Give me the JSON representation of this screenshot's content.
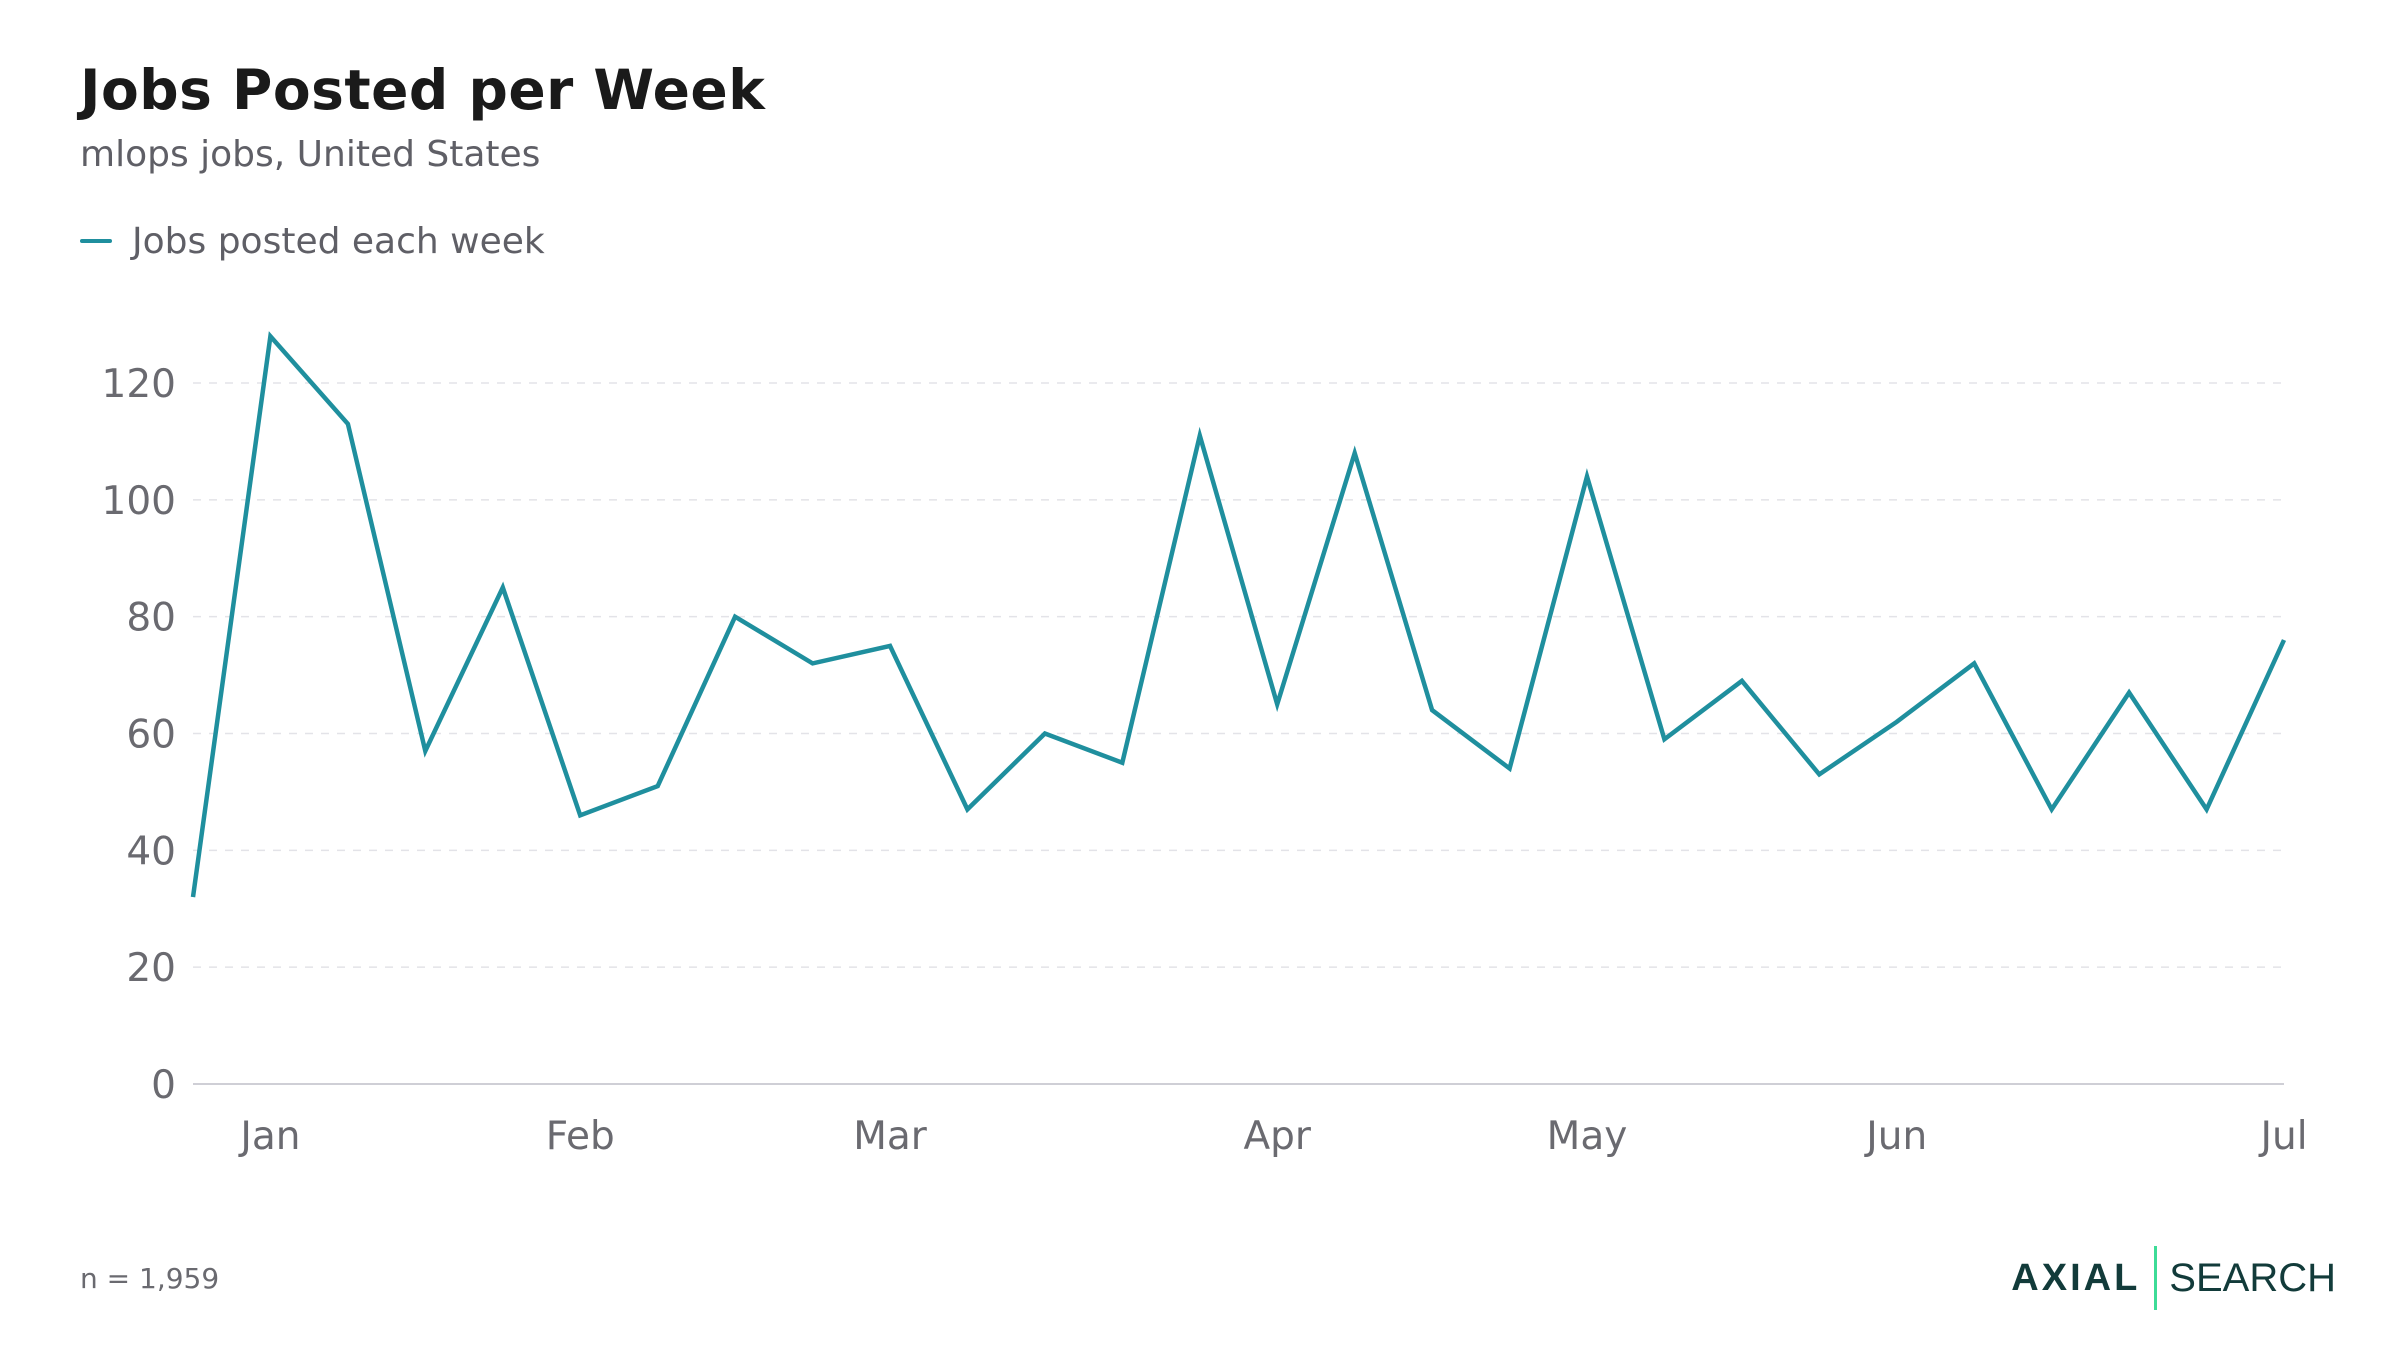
{
  "header": {
    "title": "Jobs Posted per Week",
    "subtitle": "mlops jobs, United States"
  },
  "footer": {
    "note": "n = 1,959",
    "brand_name": "AXIAL",
    "brand_product": "SEARCH"
  },
  "colors": {
    "series": "#1f8f9e",
    "brand_dark": "#123b3a",
    "brand_accent": "#3ddc97",
    "axis_text": "#6a6a70",
    "grid": "#e3e3e8"
  },
  "chart_data": {
    "type": "line",
    "xlabel": "",
    "ylabel": "",
    "ylim": [
      0,
      130
    ],
    "yticks": [
      "0",
      "20",
      "40",
      "60",
      "80",
      "100",
      "120"
    ],
    "grid": true,
    "legend_position": "top-left",
    "x_tick_labels": [
      {
        "label": "Jan",
        "index": 1
      },
      {
        "label": "Feb",
        "index": 5
      },
      {
        "label": "Mar",
        "index": 9
      },
      {
        "label": "Apr",
        "index": 14
      },
      {
        "label": "May",
        "index": 18
      },
      {
        "label": "Jun",
        "index": 22
      },
      {
        "label": "Jul",
        "index": 27
      }
    ],
    "series": [
      {
        "name": "Jobs posted each week",
        "values": [
          32,
          128,
          113,
          57,
          85,
          46,
          51,
          80,
          72,
          75,
          47,
          60,
          55,
          111,
          65,
          108,
          64,
          54,
          104,
          59,
          69,
          53,
          62,
          72,
          47,
          67,
          47,
          76
        ]
      }
    ]
  }
}
